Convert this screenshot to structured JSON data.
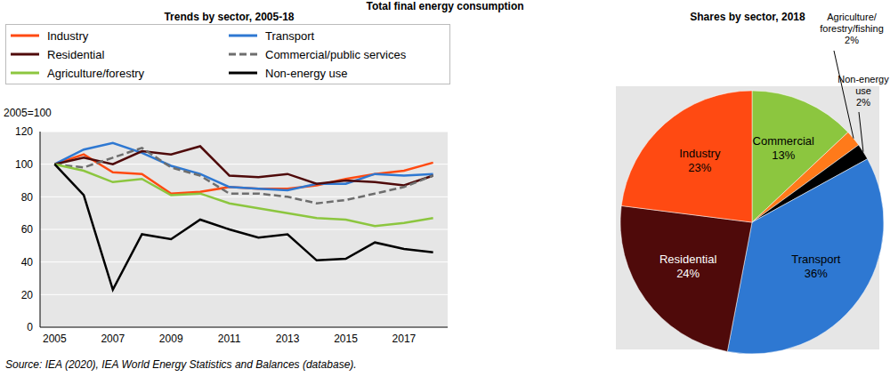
{
  "title": "Total final energy consumption",
  "source": "Source: IEA (2020), IEA World Energy Statistics and Balances (database).",
  "chart_data": [
    {
      "type": "line",
      "title": "Trends by sector, 2005-18",
      "ylabel": "2005=100",
      "x": [
        2005,
        2006,
        2007,
        2008,
        2009,
        2010,
        2011,
        2012,
        2013,
        2014,
        2015,
        2016,
        2017,
        2018
      ],
      "xlim": [
        2004.5,
        2018.5
      ],
      "xticks": [
        2005,
        2007,
        2009,
        2011,
        2013,
        2015,
        2017
      ],
      "ylim": [
        0,
        120
      ],
      "yticks": [
        0,
        20,
        40,
        60,
        80,
        100,
        120
      ],
      "grid": true,
      "legend": "top",
      "series": [
        {
          "name": "Industry",
          "color": "#ff4a12",
          "line_style": "solid",
          "values": [
            100,
            106,
            95,
            94,
            82,
            83,
            86,
            85,
            85,
            87,
            91,
            94,
            96,
            101
          ]
        },
        {
          "name": "Transport",
          "color": "#2e78d2",
          "line_style": "solid",
          "values": [
            100,
            109,
            113,
            107,
            99,
            94,
            86,
            85,
            84,
            88,
            88,
            94,
            93,
            94
          ]
        },
        {
          "name": "Residential",
          "color": "#4f0a0a",
          "line_style": "solid",
          "values": [
            100,
            104,
            100,
            108,
            106,
            111,
            93,
            92,
            94,
            88,
            90,
            89,
            87,
            93
          ]
        },
        {
          "name": "Commercial/public services",
          "color": "#6e6e6e",
          "line_style": "dashed",
          "values": [
            100,
            98,
            104,
            110,
            98,
            93,
            82,
            82,
            80,
            76,
            78,
            82,
            86,
            93
          ]
        },
        {
          "name": "Agriculture/forestry",
          "color": "#8cc63f",
          "line_style": "solid",
          "values": [
            100,
            96,
            89,
            91,
            81,
            82,
            76,
            73,
            70,
            67,
            66,
            62,
            64,
            67
          ]
        },
        {
          "name": "Non-energy use",
          "color": "#000000",
          "line_style": "solid",
          "values": [
            100,
            81,
            23,
            57,
            54,
            66,
            60,
            55,
            57,
            41,
            42,
            52,
            48,
            46
          ]
        }
      ]
    },
    {
      "type": "pie",
      "title": "Shares by sector, 2018",
      "categories": [
        "Commercial",
        "Agriculture/forestry/fishing",
        "Non-energy use",
        "Transport",
        "Residential",
        "Industry"
      ],
      "values": [
        13,
        2,
        2,
        36,
        24,
        23
      ],
      "value_labels": [
        "13%",
        "2%",
        "2%",
        "36%",
        "24%",
        "23%"
      ],
      "colors": [
        "#8cc63f",
        "#ff7a1a",
        "#000000",
        "#2e78d2",
        "#4f0a0a",
        "#ff4a12"
      ],
      "data_labels": true
    }
  ]
}
